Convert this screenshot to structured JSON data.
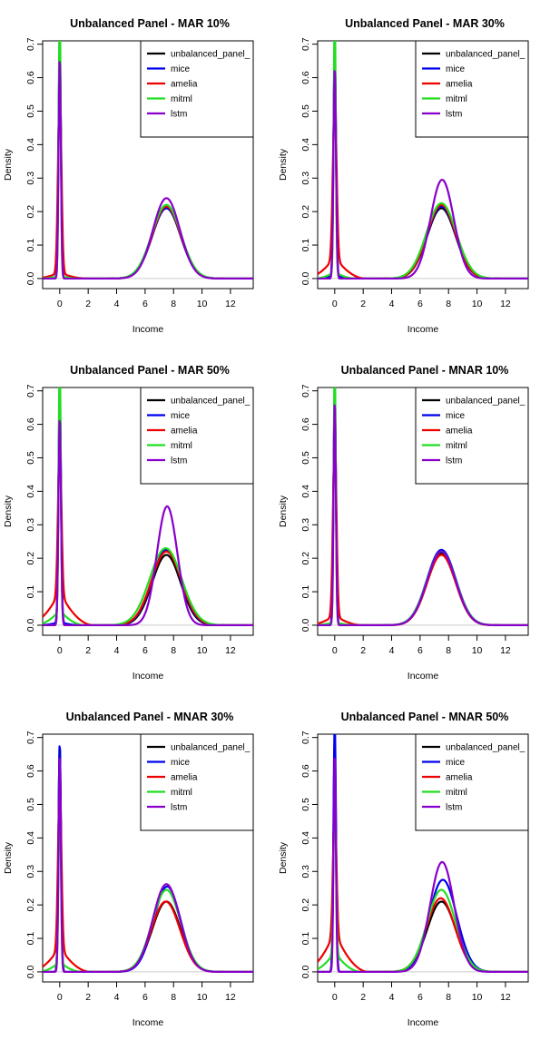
{
  "chart_data": [
    {
      "type": "line",
      "title": "Unbalanced Panel - MAR 10%",
      "xlabel": "Income",
      "ylabel": "Density",
      "xlim": [
        -1.2,
        13.6
      ],
      "ylim": [
        -0.03,
        0.71
      ],
      "xticks": [
        0,
        2,
        4,
        6,
        8,
        10,
        12
      ],
      "yticks": [
        0.0,
        0.1,
        0.2,
        0.3,
        0.4,
        0.5,
        0.6,
        0.7
      ],
      "legend": {
        "position": "top-right",
        "entries": [
          "unbalanced_panel_",
          "mice",
          "amelia",
          "mitml",
          "lstm"
        ]
      },
      "series": [
        {
          "name": "unbalanced_panel_",
          "color": "#000000",
          "peak0": 0.68,
          "width0": 0.22,
          "peak1": 0.21,
          "mu1": 7.5,
          "sd1": 1.0,
          "tail_h": 0,
          "tail_w": 0.8,
          "tail_end": 1.5
        },
        {
          "name": "mice",
          "color": "#0000ee",
          "peak0": 0.68,
          "width0": 0.22,
          "peak1": 0.21,
          "mu1": 7.5,
          "sd1": 1.0,
          "tail_h": 0,
          "tail_w": 0.8,
          "tail_end": 1.5
        },
        {
          "name": "amelia",
          "color": "#ee0000",
          "peak0": 0.55,
          "width0": 0.3,
          "peak1": 0.215,
          "mu1": 7.5,
          "sd1": 1.0,
          "tail_h": 0.018,
          "tail_w": 1.3,
          "tail_end": 2.0
        },
        {
          "name": "mitml",
          "color": "#22dd22",
          "peak0": 0.82,
          "width0": 0.18,
          "peak1": 0.22,
          "mu1": 7.5,
          "sd1": 1.02,
          "tail_h": 0.008,
          "tail_w": 0.8,
          "tail_end": 1.5
        },
        {
          "name": "lstm",
          "color": "#8800cc",
          "peak0": 0.66,
          "width0": 0.2,
          "peak1": 0.24,
          "mu1": 7.5,
          "sd1": 0.95,
          "tail_h": 0,
          "tail_w": 0.8,
          "tail_end": 1.5
        }
      ]
    },
    {
      "type": "line",
      "title": "Unbalanced Panel - MAR 30%",
      "xlabel": "Income",
      "ylabel": "Density",
      "xlim": [
        -1.2,
        13.6
      ],
      "ylim": [
        -0.03,
        0.71
      ],
      "xticks": [
        0,
        2,
        4,
        6,
        8,
        10,
        12
      ],
      "yticks": [
        0.0,
        0.1,
        0.2,
        0.3,
        0.4,
        0.5,
        0.6,
        0.7
      ],
      "legend": {
        "position": "top-right",
        "entries": [
          "unbalanced_panel_",
          "mice",
          "amelia",
          "mitml",
          "lstm"
        ]
      },
      "series": [
        {
          "name": "unbalanced_panel_",
          "color": "#000000",
          "peak0": 0.68,
          "width0": 0.22,
          "peak1": 0.21,
          "mu1": 7.5,
          "sd1": 1.0,
          "tail_h": 0,
          "tail_w": 0.8,
          "tail_end": 1.5
        },
        {
          "name": "mice",
          "color": "#0000ee",
          "peak0": 0.68,
          "width0": 0.22,
          "peak1": 0.215,
          "mu1": 7.5,
          "sd1": 1.0,
          "tail_h": 0.01,
          "tail_w": 0.8,
          "tail_end": 1.5
        },
        {
          "name": "amelia",
          "color": "#ee0000",
          "peak0": 0.48,
          "width0": 0.32,
          "peak1": 0.22,
          "mu1": 7.5,
          "sd1": 1.0,
          "tail_h": 0.065,
          "tail_w": 1.5,
          "tail_end": 2.2
        },
        {
          "name": "mitml",
          "color": "#22dd22",
          "peak0": 0.8,
          "width0": 0.18,
          "peak1": 0.225,
          "mu1": 7.5,
          "sd1": 1.05,
          "tail_h": 0.02,
          "tail_w": 0.9,
          "tail_end": 1.5
        },
        {
          "name": "lstm",
          "color": "#8800cc",
          "peak0": 0.63,
          "width0": 0.22,
          "peak1": 0.295,
          "mu1": 7.55,
          "sd1": 0.82,
          "tail_h": 0,
          "tail_w": 0.8,
          "tail_end": 1.5
        }
      ]
    },
    {
      "type": "line",
      "title": "Unbalanced Panel - MAR 50%",
      "xlabel": "Income",
      "ylabel": "Density",
      "xlim": [
        -1.2,
        13.6
      ],
      "ylim": [
        -0.03,
        0.71
      ],
      "xticks": [
        0,
        2,
        4,
        6,
        8,
        10,
        12
      ],
      "yticks": [
        0.0,
        0.1,
        0.2,
        0.3,
        0.4,
        0.5,
        0.6,
        0.7
      ],
      "legend": {
        "position": "top-right",
        "entries": [
          "unbalanced_panel_",
          "mice",
          "amelia",
          "mitml",
          "lstm"
        ]
      },
      "series": [
        {
          "name": "unbalanced_panel_",
          "color": "#000000",
          "peak0": 0.68,
          "width0": 0.22,
          "peak1": 0.21,
          "mu1": 7.5,
          "sd1": 1.0,
          "tail_h": 0,
          "tail_w": 0.8,
          "tail_end": 1.5
        },
        {
          "name": "mice",
          "color": "#0000ee",
          "peak0": 0.7,
          "width0": 0.22,
          "peak1": 0.225,
          "mu1": 7.5,
          "sd1": 1.02,
          "tail_h": 0.01,
          "tail_w": 0.8,
          "tail_end": 1.5
        },
        {
          "name": "amelia",
          "color": "#ee0000",
          "peak0": 0.45,
          "width0": 0.3,
          "peak1": 0.22,
          "mu1": 7.5,
          "sd1": 1.05,
          "tail_h": 0.1,
          "tail_w": 1.6,
          "tail_end": 2.4
        },
        {
          "name": "mitml",
          "color": "#22dd22",
          "peak0": 0.78,
          "width0": 0.18,
          "peak1": 0.23,
          "mu1": 7.45,
          "sd1": 1.12,
          "tail_h": 0.045,
          "tail_w": 1.1,
          "tail_end": 1.8
        },
        {
          "name": "lstm",
          "color": "#8800cc",
          "peak0": 0.62,
          "width0": 0.22,
          "peak1": 0.355,
          "mu1": 7.55,
          "sd1": 0.72,
          "tail_h": 0,
          "tail_w": 0.8,
          "tail_end": 1.5
        }
      ]
    },
    {
      "type": "line",
      "title": "Unbalanced Panel - MNAR 10%",
      "xlabel": "Income",
      "ylabel": "Density",
      "xlim": [
        -1.2,
        13.6
      ],
      "ylim": [
        -0.03,
        0.71
      ],
      "xticks": [
        0,
        2,
        4,
        6,
        8,
        10,
        12
      ],
      "yticks": [
        0.0,
        0.1,
        0.2,
        0.3,
        0.4,
        0.5,
        0.6,
        0.7
      ],
      "legend": {
        "position": "top-right",
        "entries": [
          "unbalanced_panel_",
          "mice",
          "amelia",
          "mitml",
          "lstm"
        ]
      },
      "series": [
        {
          "name": "unbalanced_panel_",
          "color": "#000000",
          "peak0": 0.68,
          "width0": 0.22,
          "peak1": 0.215,
          "mu1": 7.5,
          "sd1": 1.0,
          "tail_h": 0,
          "tail_w": 0.8,
          "tail_end": 1.5
        },
        {
          "name": "mice",
          "color": "#0000ee",
          "peak0": 0.68,
          "width0": 0.22,
          "peak1": 0.225,
          "mu1": 7.5,
          "sd1": 1.02,
          "tail_h": 0,
          "tail_w": 0.8,
          "tail_end": 1.5
        },
        {
          "name": "amelia",
          "color": "#ee0000",
          "peak0": 0.55,
          "width0": 0.3,
          "peak1": 0.21,
          "mu1": 7.5,
          "sd1": 1.0,
          "tail_h": 0.03,
          "tail_w": 1.4,
          "tail_end": 2.0
        },
        {
          "name": "mitml",
          "color": "#22dd22",
          "peak0": 0.8,
          "width0": 0.18,
          "peak1": 0.22,
          "mu1": 7.5,
          "sd1": 1.02,
          "tail_h": 0.01,
          "tail_w": 0.8,
          "tail_end": 1.5
        },
        {
          "name": "lstm",
          "color": "#8800cc",
          "peak0": 0.67,
          "width0": 0.2,
          "peak1": 0.22,
          "mu1": 7.5,
          "sd1": 1.0,
          "tail_h": 0,
          "tail_w": 0.8,
          "tail_end": 1.5
        }
      ]
    },
    {
      "type": "line",
      "title": "Unbalanced Panel - MNAR 30%",
      "xlabel": "Income",
      "ylabel": "Density",
      "xlim": [
        -1.2,
        13.6
      ],
      "ylim": [
        -0.03,
        0.71
      ],
      "xticks": [
        0,
        2,
        4,
        6,
        8,
        10,
        12
      ],
      "yticks": [
        0.0,
        0.1,
        0.2,
        0.3,
        0.4,
        0.5,
        0.6,
        0.7
      ],
      "legend": {
        "position": "top-right",
        "entries": [
          "unbalanced_panel_",
          "mice",
          "amelia",
          "mitml",
          "lstm"
        ]
      },
      "series": [
        {
          "name": "unbalanced_panel_",
          "color": "#000000",
          "peak0": 0.68,
          "width0": 0.22,
          "peak1": 0.21,
          "mu1": 7.5,
          "sd1": 1.0,
          "tail_h": 0,
          "tail_w": 0.8,
          "tail_end": 1.5
        },
        {
          "name": "mice",
          "color": "#0000ee",
          "peak0": 0.685,
          "width0": 0.22,
          "peak1": 0.255,
          "mu1": 7.55,
          "sd1": 0.95,
          "tail_h": 0,
          "tail_w": 0.8,
          "tail_end": 1.5
        },
        {
          "name": "amelia",
          "color": "#ee0000",
          "peak0": 0.48,
          "width0": 0.3,
          "peak1": 0.21,
          "mu1": 7.45,
          "sd1": 1.0,
          "tail_h": 0.075,
          "tail_w": 1.5,
          "tail_end": 2.2
        },
        {
          "name": "mitml",
          "color": "#22dd22",
          "peak0": 0.5,
          "width0": 0.2,
          "peak1": 0.245,
          "mu1": 7.5,
          "sd1": 1.0,
          "tail_h": 0.03,
          "tail_w": 1.0,
          "tail_end": 1.6
        },
        {
          "name": "lstm",
          "color": "#8800cc",
          "peak0": 0.65,
          "width0": 0.2,
          "peak1": 0.262,
          "mu1": 7.5,
          "sd1": 0.95,
          "tail_h": 0,
          "tail_w": 0.8,
          "tail_end": 1.5
        }
      ]
    },
    {
      "type": "line",
      "title": "Unbalanced Panel - MNAR 50%",
      "xlabel": "Income",
      "ylabel": "Density",
      "xlim": [
        -1.2,
        13.6
      ],
      "ylim": [
        -0.03,
        0.71
      ],
      "xticks": [
        0,
        2,
        4,
        6,
        8,
        10,
        12
      ],
      "yticks": [
        0.0,
        0.1,
        0.2,
        0.3,
        0.4,
        0.5,
        0.6,
        0.7
      ],
      "legend": {
        "position": "top-right",
        "entries": [
          "unbalanced_panel_",
          "mice",
          "amelia",
          "mitml",
          "lstm"
        ]
      },
      "series": [
        {
          "name": "unbalanced_panel_",
          "color": "#000000",
          "peak0": 0.68,
          "width0": 0.22,
          "peak1": 0.21,
          "mu1": 7.5,
          "sd1": 1.0,
          "tail_h": 0,
          "tail_w": 0.8,
          "tail_end": 1.5
        },
        {
          "name": "mice",
          "color": "#0000ee",
          "peak0": 0.75,
          "width0": 0.22,
          "peak1": 0.275,
          "mu1": 7.6,
          "sd1": 0.98,
          "tail_h": 0,
          "tail_w": 0.8,
          "tail_end": 1.5
        },
        {
          "name": "amelia",
          "color": "#ee0000",
          "peak0": 0.38,
          "width0": 0.3,
          "peak1": 0.22,
          "mu1": 7.45,
          "sd1": 1.0,
          "tail_h": 0.12,
          "tail_w": 1.6,
          "tail_end": 2.4
        },
        {
          "name": "mitml",
          "color": "#22dd22",
          "peak0": 0.48,
          "width0": 0.22,
          "peak1": 0.245,
          "mu1": 7.5,
          "sd1": 1.0,
          "tail_h": 0.06,
          "tail_w": 1.2,
          "tail_end": 1.9
        },
        {
          "name": "lstm",
          "color": "#8800cc",
          "peak0": 0.65,
          "width0": 0.2,
          "peak1": 0.328,
          "mu1": 7.55,
          "sd1": 0.85,
          "tail_h": 0,
          "tail_w": 0.8,
          "tail_end": 1.5
        }
      ]
    }
  ]
}
